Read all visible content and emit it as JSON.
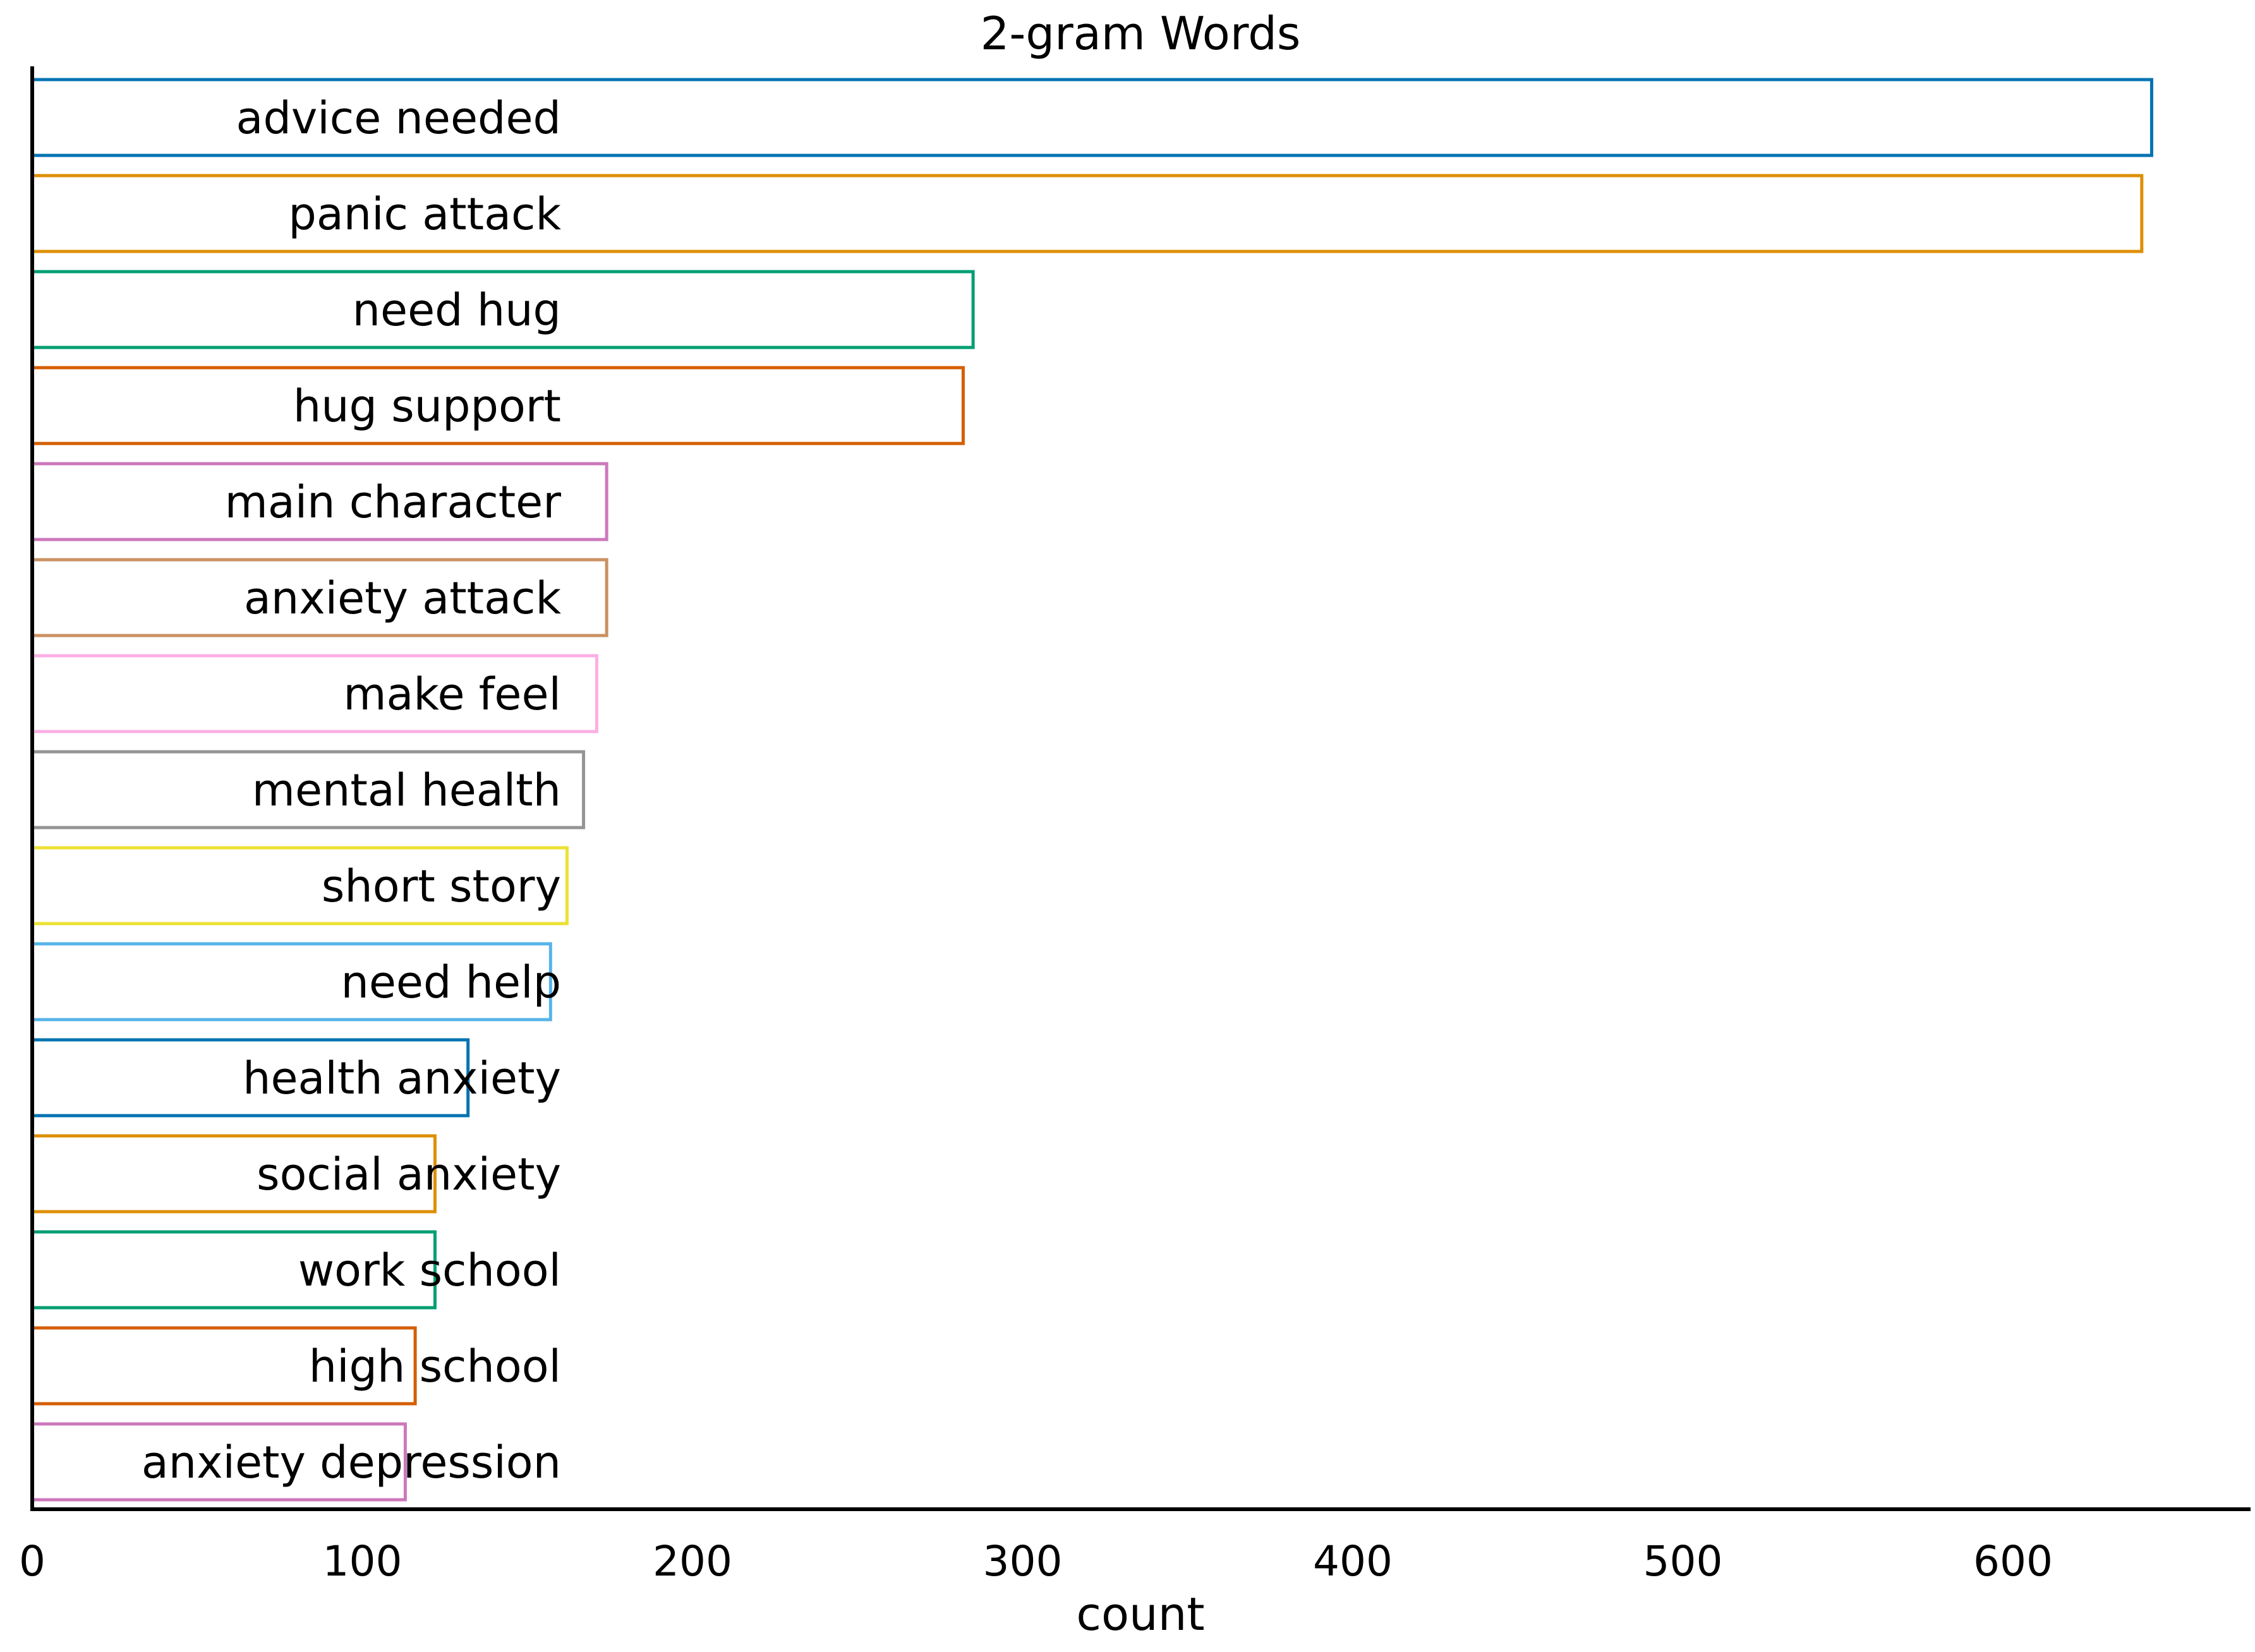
{
  "chart_data": {
    "type": "bar",
    "orientation": "horizontal",
    "title": "2-gram Words",
    "xlabel": "count",
    "ylabel": "",
    "xlim": [
      0,
      675
    ],
    "xticks": [
      0,
      100,
      200,
      300,
      400,
      500,
      600
    ],
    "xtick_labels": [
      "0",
      "100",
      "200",
      "300",
      "400",
      "500",
      "600"
    ],
    "categories": [
      "advice needed",
      "panic attack",
      "need hug",
      "hug support",
      "main character",
      "anxiety attack",
      "make feel",
      "mental health",
      "short story",
      "need help",
      "health anxiety",
      "social anxiety",
      "work school",
      "high school",
      "anxiety depression"
    ],
    "values": [
      642,
      639,
      285,
      282,
      174,
      174,
      171,
      167,
      162,
      157,
      132,
      122,
      122,
      116,
      113
    ],
    "bar_style": "outline",
    "colors": [
      "#0173b2",
      "#de8f05",
      "#029e73",
      "#d55e00",
      "#cc78bc",
      "#ca9161",
      "#fbafe4",
      "#949494",
      "#ece133",
      "#56b4e9",
      "#0173b2",
      "#de8f05",
      "#029e73",
      "#d55e00",
      "#cc78bc"
    ],
    "grid": false,
    "legend": "none"
  }
}
